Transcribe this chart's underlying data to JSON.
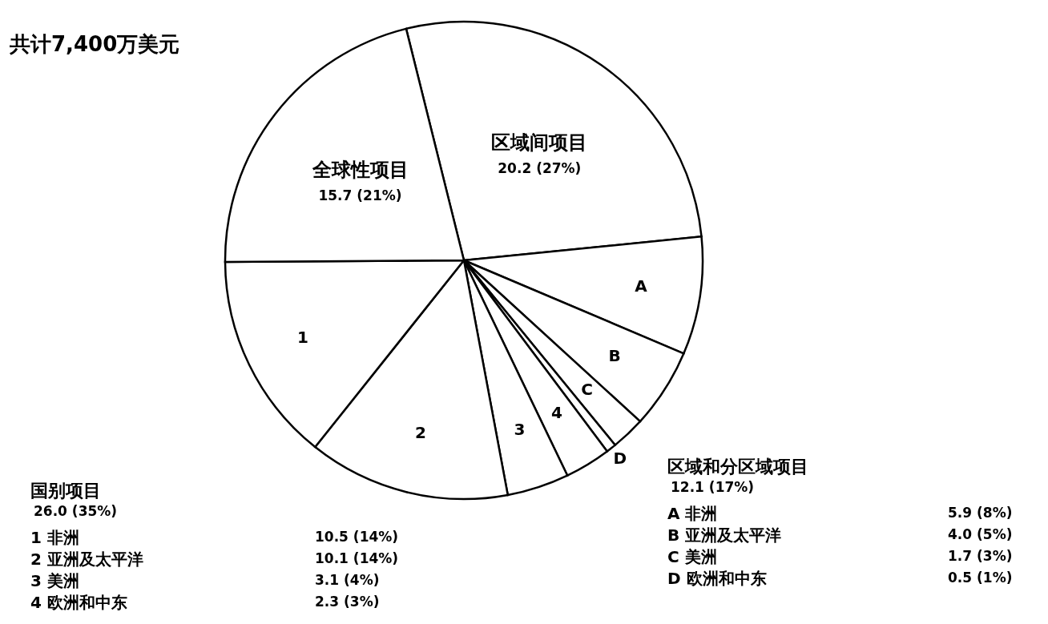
{
  "chart_data": {
    "type": "pie",
    "title": "共计7,400万美元",
    "categories": [
      "区域间项目",
      "A",
      "B",
      "C",
      "D",
      "4",
      "3",
      "2",
      "1",
      "全球性项目"
    ],
    "values": [
      20.2,
      5.9,
      4.0,
      1.7,
      0.5,
      2.3,
      3.1,
      10.1,
      10.5,
      15.7
    ],
    "value_labels": [
      "20.2 (27%)",
      null,
      null,
      null,
      null,
      null,
      null,
      null,
      null,
      "15.7 (21%)"
    ],
    "colors": [
      "#ffffff",
      "#ffffff",
      "#ffffff",
      "#ffffff",
      "#ffffff",
      "#ffffff",
      "#ffffff",
      "#ffffff",
      "#ffffff",
      "#ffffff"
    ],
    "annotations": [
      "国别项目",
      "26.0 (35%)",
      "1 非洲",
      "10.5 (14%)",
      "2 亚洲及太平洋",
      "10.1 (14%)",
      "3 美洲",
      "3.1 (4%)",
      "4 欧洲和中东",
      "2.3 (3%)",
      "区域和分区域项目",
      "12.1 (17%)",
      "A 非洲",
      "5.9 (8%)",
      "B 亚洲及太平洋",
      "4.0 (5%)",
      "C 美洲",
      "1.7 (3%)",
      "D 欧洲和中东",
      "0.5 (1%)"
    ]
  }
}
